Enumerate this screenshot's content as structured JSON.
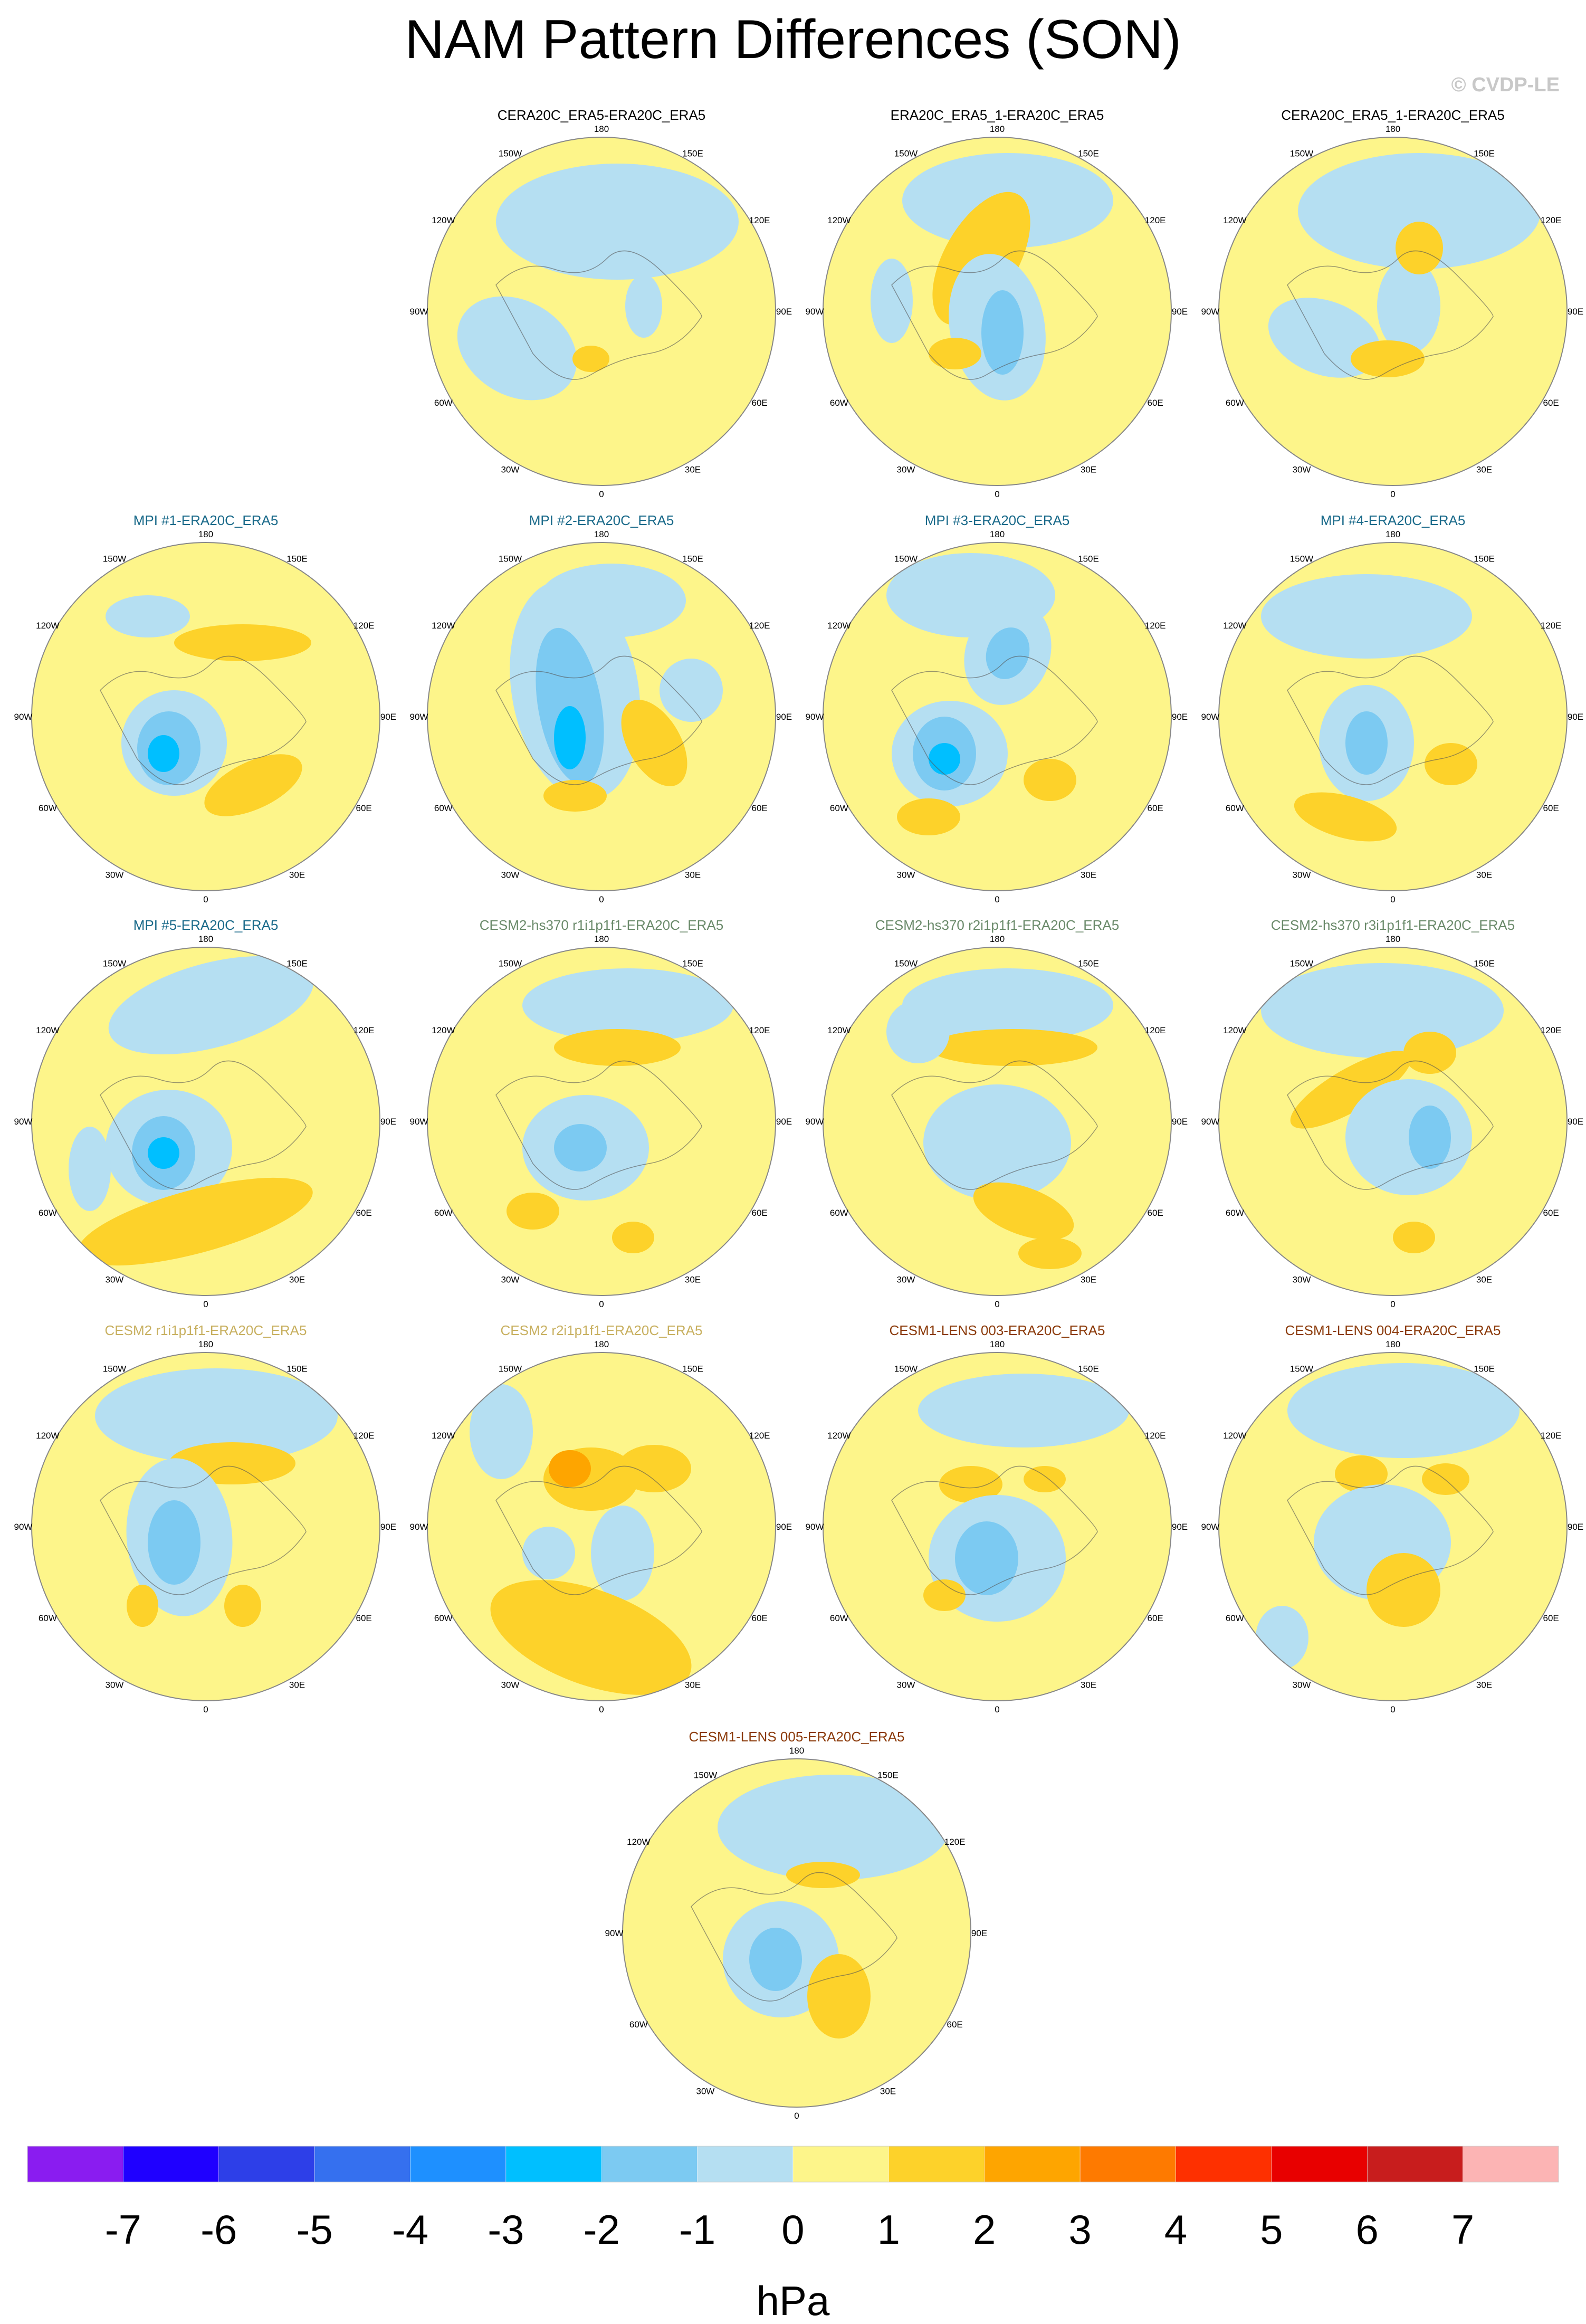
{
  "title": "NAM Pattern Differences (SON)",
  "watermark": "© CVDP-LE",
  "longitude_labels": [
    "180",
    "150E",
    "120E",
    "90E",
    "60E",
    "30E",
    "0",
    "30W",
    "60W",
    "90W",
    "120W",
    "150W"
  ],
  "colorbar": {
    "units": "hPa",
    "tick_labels": [
      "-7",
      "-6",
      "-5",
      "-4",
      "-3",
      "-2",
      "-1",
      "0",
      "1",
      "2",
      "3",
      "4",
      "5",
      "6",
      "7"
    ],
    "colors": [
      "#8a1cf0",
      "#1f00ff",
      "#2d3fe8",
      "#3570ef",
      "#1e90ff",
      "#00bfff",
      "#7ccaf2",
      "#b5dff2",
      "#fdf58a",
      "#fdd22a",
      "#fea500",
      "#fe7a00",
      "#fe3000",
      "#e80000",
      "#c81d1d",
      "#fcb4b4"
    ]
  },
  "colors": {
    "background_fill": "#fdf58a",
    "neg1": "#b5dff2",
    "neg2": "#7ccaf2",
    "neg3": "#00bfff",
    "pos2": "#fdd22a",
    "pos3": "#fea500",
    "title_black": "#000000",
    "title_mpi": "#1a6a8a",
    "title_cesm2hs": "#6a8a6a",
    "title_cesm2": "#c8b060",
    "title_lens": "#8b3a0a"
  },
  "panels": [
    {
      "title": "CERA20C_ERA5-ERA20C_ERA5",
      "color": "#000000"
    },
    {
      "title": "ERA20C_ERA5_1-ERA20C_ERA5",
      "color": "#000000"
    },
    {
      "title": "CERA20C_ERA5_1-ERA20C_ERA5",
      "color": "#000000"
    },
    {
      "title": "MPI #1-ERA20C_ERA5",
      "color": "#1a6a8a"
    },
    {
      "title": "MPI #2-ERA20C_ERA5",
      "color": "#1a6a8a"
    },
    {
      "title": "MPI #3-ERA20C_ERA5",
      "color": "#1a6a8a"
    },
    {
      "title": "MPI #4-ERA20C_ERA5",
      "color": "#1a6a8a"
    },
    {
      "title": "MPI #5-ERA20C_ERA5",
      "color": "#1a6a8a"
    },
    {
      "title": "CESM2-hs370 r1i1p1f1-ERA20C_ERA5",
      "color": "#6a8a6a"
    },
    {
      "title": "CESM2-hs370 r2i1p1f1-ERA20C_ERA5",
      "color": "#6a8a6a"
    },
    {
      "title": "CESM2-hs370 r3i1p1f1-ERA20C_ERA5",
      "color": "#6a8a6a"
    },
    {
      "title": "CESM2 r1i1p1f1-ERA20C_ERA5",
      "color": "#c8b060"
    },
    {
      "title": "CESM2 r2i1p1f1-ERA20C_ERA5",
      "color": "#c8b060"
    },
    {
      "title": "CESM1-LENS 003-ERA20C_ERA5",
      "color": "#8b3a0a"
    },
    {
      "title": "CESM1-LENS 004-ERA20C_ERA5",
      "color": "#8b3a0a"
    },
    {
      "title": "CESM1-LENS 005-ERA20C_ERA5",
      "color": "#8b3a0a"
    }
  ]
}
